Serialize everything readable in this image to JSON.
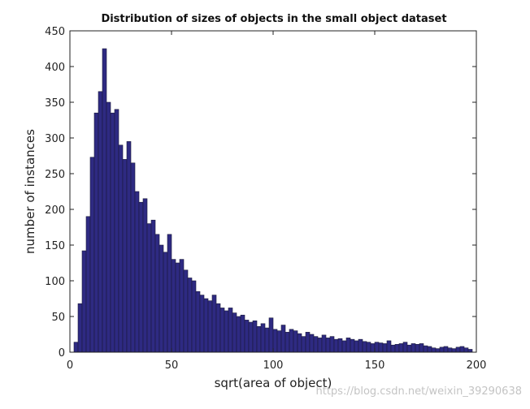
{
  "chart_data": {
    "type": "bar",
    "title": "Distribution of sizes of objects in the small object dataset",
    "xlabel": "sqrt(area of object)",
    "ylabel": "number of instances",
    "xlim": [
      0,
      200
    ],
    "ylim": [
      0,
      450
    ],
    "xticks": [
      0,
      50,
      100,
      150,
      200
    ],
    "yticks": [
      0,
      50,
      100,
      150,
      200,
      250,
      300,
      350,
      400,
      450
    ],
    "grid": false,
    "bin_width": 2,
    "bar_color": "#2e2a82",
    "bar_edge_color": "#1a1a3a",
    "x": [
      3,
      5,
      7,
      9,
      11,
      13,
      15,
      17,
      19,
      21,
      23,
      25,
      27,
      29,
      31,
      33,
      35,
      37,
      39,
      41,
      43,
      45,
      47,
      49,
      51,
      53,
      55,
      57,
      59,
      61,
      63,
      65,
      67,
      69,
      71,
      73,
      75,
      77,
      79,
      81,
      83,
      85,
      87,
      89,
      91,
      93,
      95,
      97,
      99,
      101,
      103,
      105,
      107,
      109,
      111,
      113,
      115,
      117,
      119,
      121,
      123,
      125,
      127,
      129,
      131,
      133,
      135,
      137,
      139,
      141,
      143,
      145,
      147,
      149,
      151,
      153,
      155,
      157,
      159,
      161,
      163,
      165,
      167,
      169,
      171,
      173,
      175,
      177,
      179,
      181,
      183,
      185,
      187,
      189,
      191,
      193,
      195,
      197
    ],
    "values": [
      14,
      68,
      142,
      190,
      273,
      335,
      365,
      425,
      350,
      335,
      340,
      290,
      270,
      295,
      265,
      225,
      210,
      215,
      180,
      185,
      165,
      150,
      140,
      165,
      130,
      125,
      130,
      115,
      104,
      100,
      85,
      80,
      75,
      72,
      80,
      68,
      62,
      58,
      62,
      55,
      50,
      52,
      45,
      42,
      44,
      36,
      40,
      34,
      48,
      32,
      30,
      38,
      28,
      32,
      30,
      26,
      22,
      28,
      25,
      22,
      20,
      24,
      20,
      22,
      18,
      19,
      16,
      20,
      18,
      16,
      18,
      15,
      14,
      12,
      14,
      13,
      12,
      16,
      10,
      11,
      12,
      14,
      10,
      12,
      11,
      12,
      9,
      8,
      6,
      5,
      7,
      8,
      6,
      5,
      7,
      8,
      6,
      4
    ]
  },
  "watermark": "https://blog.csdn.net/weixin_39290638"
}
